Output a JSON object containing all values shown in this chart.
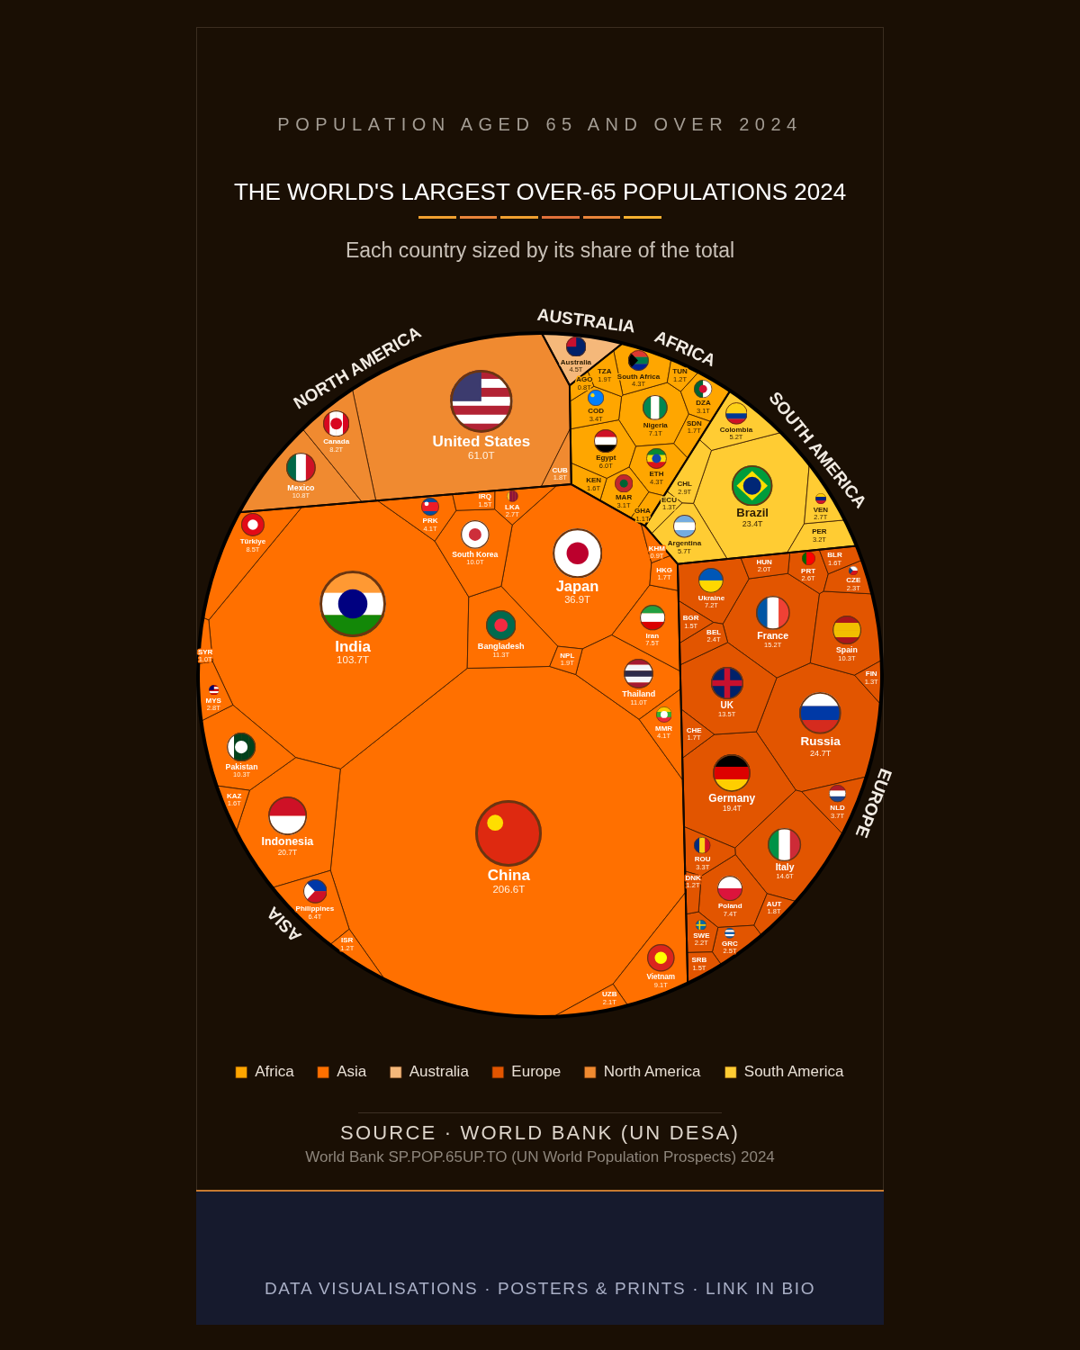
{
  "chart_data": {
    "type": "other",
    "title": "THE WORLD'S LARGEST OVER-65 POPULATIONS 2024",
    "subtitle": "Each country sized by its share of the total",
    "annotations": [
      "POPULATION AGED 65 AND OVER 2024",
      "SOURCE · WORLD BANK (UN DESA)",
      "World Bank SP.POP.65UP.TO (UN World Population Prospects) 2024",
      "DATA VISUALISATIONS · POSTERS & PRINTS · LINK IN BIO",
      "AFRICA",
      "ASIA",
      "AUSTRALIA",
      "EUROPE",
      "NORTH AMERICA",
      "SOUTH AMERICA"
    ],
    "categories": [
      "Nigeria",
      "Egypt",
      "South Africa",
      "ETH",
      "COD",
      "DZA",
      "MAR",
      "TZA",
      "SDN",
      "KEN",
      "TUN",
      "GHA",
      "AGO",
      "China",
      "India",
      "Japan",
      "Indonesia",
      "Bangladesh",
      "Thailand",
      "Pakistan",
      "South Korea",
      "Vietnam",
      "Türkiye",
      "Iran",
      "Philippines",
      "PRK",
      "MMR",
      "MYS",
      "LKA",
      "UZB",
      "NPL",
      "HKG",
      "KAZ",
      "IRQ",
      "ISR",
      "SYR",
      "KHM",
      "Australia",
      "Russia",
      "Germany",
      "France",
      "Italy",
      "UK",
      "Spain",
      "Poland",
      "Ukraine",
      "NLD",
      "ROU",
      "PRT",
      "GRC",
      "BEL",
      "CZE",
      "SWE",
      "HUN",
      "AUT",
      "CHE",
      "BLR",
      "SRB",
      "BGR",
      "FIN",
      "DNK",
      "United States",
      "Mexico",
      "Canada",
      "CUB",
      "Brazil",
      "Argentina",
      "Colombia",
      "PER",
      "CHL",
      "VEN",
      "ECU"
    ],
    "series": [
      {
        "name": "Africa",
        "color": "#ffa600",
        "values": [
          7.1,
          6.0,
          4.3,
          4.3,
          3.4,
          3.1,
          3.1,
          1.9,
          1.7,
          1.6,
          1.2,
          1.1,
          0.8,
          null,
          null,
          null,
          null,
          null,
          null,
          null,
          null,
          null,
          null,
          null,
          null,
          null,
          null,
          null,
          null,
          null,
          null,
          null,
          null,
          null,
          null,
          null,
          null,
          null,
          null,
          null,
          null,
          null,
          null,
          null,
          null,
          null,
          null,
          null,
          null,
          null,
          null,
          null,
          null,
          null,
          null,
          null,
          null,
          null,
          null,
          null,
          null,
          null,
          null,
          null,
          null,
          null,
          null,
          null,
          null,
          null,
          null,
          null
        ],
        "value_labels": [
          "7.1T",
          "6.0T",
          "4.3T",
          "4.3T",
          "3.4T",
          "3.1T",
          "3.1T",
          "1.9T",
          "1.7T",
          "1.6T",
          "1.2T",
          "1.1T",
          "0.8T",
          null,
          null,
          null,
          null,
          null,
          null,
          null,
          null,
          null,
          null,
          null,
          null,
          null,
          null,
          null,
          null,
          null,
          null,
          null,
          null,
          null,
          null,
          null,
          null,
          null,
          null,
          null,
          null,
          null,
          null,
          null,
          null,
          null,
          null,
          null,
          null,
          null,
          null,
          null,
          null,
          null,
          null,
          null,
          null,
          null,
          null,
          null,
          null,
          null,
          null,
          null,
          null,
          null,
          null,
          null,
          null,
          null,
          null,
          null
        ]
      },
      {
        "name": "Asia",
        "color": "#ff7000",
        "values": [
          null,
          null,
          null,
          null,
          null,
          null,
          null,
          null,
          null,
          null,
          null,
          null,
          null,
          206.6,
          103.7,
          36.9,
          20.7,
          11.3,
          11.0,
          10.3,
          10.0,
          9.1,
          8.5,
          7.5,
          6.4,
          4.1,
          4.1,
          2.8,
          2.7,
          2.1,
          1.9,
          1.7,
          1.6,
          1.5,
          1.2,
          1.0,
          0.9,
          null,
          null,
          null,
          null,
          null,
          null,
          null,
          null,
          null,
          null,
          null,
          null,
          null,
          null,
          null,
          null,
          null,
          null,
          null,
          null,
          null,
          null,
          null,
          null,
          null,
          null,
          null,
          null,
          null,
          null,
          null,
          null,
          null,
          null,
          null
        ],
        "value_labels": [
          null,
          null,
          null,
          null,
          null,
          null,
          null,
          null,
          null,
          null,
          null,
          null,
          null,
          "206.6T",
          "103.7T",
          "36.9T",
          "20.7T",
          "11.3T",
          "11.0T",
          "10.3T",
          "10.0T",
          "9.1T",
          "8.5T",
          "7.5T",
          "6.4T",
          "4.1T",
          "4.1T",
          "2.8T",
          "2.7T",
          "2.1T",
          "1.9T",
          "1.7T",
          "1.6T",
          "1.5T",
          "1.2T",
          "1.0T",
          "0.9T",
          null,
          null,
          null,
          null,
          null,
          null,
          null,
          null,
          null,
          null,
          null,
          null,
          null,
          null,
          null,
          null,
          null,
          null,
          null,
          null,
          null,
          null,
          null,
          null,
          null,
          null,
          null,
          null,
          null,
          null,
          null,
          null,
          null,
          null,
          null
        ]
      },
      {
        "name": "Australia",
        "color": "#f5b87a",
        "values": [
          null,
          null,
          null,
          null,
          null,
          null,
          null,
          null,
          null,
          null,
          null,
          null,
          null,
          null,
          null,
          null,
          null,
          null,
          null,
          null,
          null,
          null,
          null,
          null,
          null,
          null,
          null,
          null,
          null,
          null,
          null,
          null,
          null,
          null,
          null,
          null,
          null,
          4.5,
          null,
          null,
          null,
          null,
          null,
          null,
          null,
          null,
          null,
          null,
          null,
          null,
          null,
          null,
          null,
          null,
          null,
          null,
          null,
          null,
          null,
          null,
          null,
          null,
          null,
          null,
          null,
          null,
          null,
          null,
          null,
          null,
          null,
          null
        ],
        "value_labels": [
          null,
          null,
          null,
          null,
          null,
          null,
          null,
          null,
          null,
          null,
          null,
          null,
          null,
          null,
          null,
          null,
          null,
          null,
          null,
          null,
          null,
          null,
          null,
          null,
          null,
          null,
          null,
          null,
          null,
          null,
          null,
          null,
          null,
          null,
          null,
          null,
          null,
          "4.5T",
          null,
          null,
          null,
          null,
          null,
          null,
          null,
          null,
          null,
          null,
          null,
          null,
          null,
          null,
          null,
          null,
          null,
          null,
          null,
          null,
          null,
          null,
          null,
          null,
          null,
          null,
          null,
          null,
          null,
          null,
          null,
          null,
          null,
          null
        ]
      },
      {
        "name": "Europe",
        "color": "#e25500",
        "values": [
          null,
          null,
          null,
          null,
          null,
          null,
          null,
          null,
          null,
          null,
          null,
          null,
          null,
          null,
          null,
          null,
          null,
          null,
          null,
          null,
          null,
          null,
          null,
          null,
          null,
          null,
          null,
          null,
          null,
          null,
          null,
          null,
          null,
          null,
          null,
          null,
          null,
          null,
          24.7,
          19.4,
          15.2,
          14.6,
          13.5,
          10.3,
          7.4,
          7.2,
          3.7,
          3.3,
          2.6,
          2.5,
          2.4,
          2.3,
          2.2,
          2.0,
          1.8,
          1.7,
          1.6,
          1.5,
          1.5,
          1.3,
          1.2,
          null,
          null,
          null,
          null,
          null,
          null,
          null,
          null,
          null,
          null,
          null
        ],
        "value_labels": [
          null,
          null,
          null,
          null,
          null,
          null,
          null,
          null,
          null,
          null,
          null,
          null,
          null,
          null,
          null,
          null,
          null,
          null,
          null,
          null,
          null,
          null,
          null,
          null,
          null,
          null,
          null,
          null,
          null,
          null,
          null,
          null,
          null,
          null,
          null,
          null,
          null,
          null,
          "24.7T",
          "19.4T",
          "15.2T",
          "14.6T",
          "13.5T",
          "10.3T",
          "7.4T",
          "7.2T",
          "3.7T",
          "3.3T",
          "2.6T",
          "2.5T",
          "2.4T",
          "2.3T",
          "2.2T",
          "2.0T",
          "1.8T",
          "1.7T",
          "1.6T",
          "1.5T",
          "1.5T",
          "1.3T",
          "1.2T",
          null,
          null,
          null,
          null,
          null,
          null,
          null,
          null,
          null,
          null,
          null
        ]
      },
      {
        "name": "North America",
        "color": "#f08a30",
        "values": [
          null,
          null,
          null,
          null,
          null,
          null,
          null,
          null,
          null,
          null,
          null,
          null,
          null,
          null,
          null,
          null,
          null,
          null,
          null,
          null,
          null,
          null,
          null,
          null,
          null,
          null,
          null,
          null,
          null,
          null,
          null,
          null,
          null,
          null,
          null,
          null,
          null,
          null,
          null,
          null,
          null,
          null,
          null,
          null,
          null,
          null,
          null,
          null,
          null,
          null,
          null,
          null,
          null,
          null,
          null,
          null,
          null,
          null,
          null,
          null,
          null,
          61.0,
          10.8,
          8.2,
          1.8,
          null,
          null,
          null,
          null,
          null,
          null,
          null
        ],
        "value_labels": [
          null,
          null,
          null,
          null,
          null,
          null,
          null,
          null,
          null,
          null,
          null,
          null,
          null,
          null,
          null,
          null,
          null,
          null,
          null,
          null,
          null,
          null,
          null,
          null,
          null,
          null,
          null,
          null,
          null,
          null,
          null,
          null,
          null,
          null,
          null,
          null,
          null,
          null,
          null,
          null,
          null,
          null,
          null,
          null,
          null,
          null,
          null,
          null,
          null,
          null,
          null,
          null,
          null,
          null,
          null,
          null,
          null,
          null,
          null,
          null,
          null,
          "61.0T",
          "10.8T",
          "8.2T",
          "1.8T",
          null,
          null,
          null,
          null,
          null,
          null,
          null
        ]
      },
      {
        "name": "South America",
        "color": "#ffcc33",
        "values": [
          null,
          null,
          null,
          null,
          null,
          null,
          null,
          null,
          null,
          null,
          null,
          null,
          null,
          null,
          null,
          null,
          null,
          null,
          null,
          null,
          null,
          null,
          null,
          null,
          null,
          null,
          null,
          null,
          null,
          null,
          null,
          null,
          null,
          null,
          null,
          null,
          null,
          null,
          null,
          null,
          null,
          null,
          null,
          null,
          null,
          null,
          null,
          null,
          null,
          null,
          null,
          null,
          null,
          null,
          null,
          null,
          null,
          null,
          null,
          null,
          null,
          null,
          null,
          null,
          null,
          23.4,
          5.7,
          5.2,
          3.2,
          2.9,
          2.7,
          1.3
        ],
        "value_labels": [
          null,
          null,
          null,
          null,
          null,
          null,
          null,
          null,
          null,
          null,
          null,
          null,
          null,
          null,
          null,
          null,
          null,
          null,
          null,
          null,
          null,
          null,
          null,
          null,
          null,
          null,
          null,
          null,
          null,
          null,
          null,
          null,
          null,
          null,
          null,
          null,
          null,
          null,
          null,
          null,
          null,
          null,
          null,
          null,
          null,
          null,
          null,
          null,
          null,
          null,
          null,
          null,
          null,
          null,
          null,
          null,
          null,
          null,
          null,
          null,
          null,
          null,
          null,
          null,
          null,
          "23.4T",
          "5.7T",
          "5.2T",
          "3.2T",
          "2.9T",
          "2.7T",
          "1.3T"
        ]
      }
    ],
    "legend": "bottom"
  }
}
